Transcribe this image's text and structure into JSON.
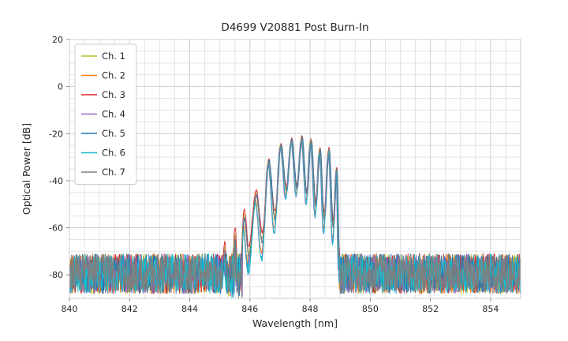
{
  "chart_data": {
    "type": "line",
    "title": "D4699 V20881 Post Burn-In",
    "xlabel": "Wavelength [nm]",
    "ylabel": "Optical Power [dB]",
    "xlim": [
      840,
      855
    ],
    "ylim": [
      -90,
      20
    ],
    "xticks": [
      840,
      842,
      844,
      846,
      848,
      850,
      852,
      854
    ],
    "yticks": [
      20,
      0,
      -20,
      -40,
      -60,
      -80
    ],
    "x_minor_step": 0.5,
    "y_minor_step": 5,
    "grid": true,
    "legend_position": "upper left",
    "background_color": "#ffffff",
    "grid_minor_color": "#e4e4e4",
    "grid_major_color": "#cfcfcf",
    "axes_border_color": "#cccccc",
    "series": [
      {
        "name": "Ch. 1",
        "color": "#bcbd22"
      },
      {
        "name": "Ch. 2",
        "color": "#ff7f0e"
      },
      {
        "name": "Ch. 3",
        "color": "#d62728"
      },
      {
        "name": "Ch. 4",
        "color": "#9467bd"
      },
      {
        "name": "Ch. 5",
        "color": "#1f77b4"
      },
      {
        "name": "Ch. 6",
        "color": "#17becf"
      },
      {
        "name": "Ch. 7",
        "color": "#7f7f7f"
      }
    ],
    "noise_floor_db": {
      "max": -71,
      "min": -88
    },
    "signal_envelope_nm_db": [
      [
        845.0,
        -100
      ],
      [
        845.15,
        -72
      ],
      [
        845.3,
        -100
      ],
      [
        845.5,
        -66
      ],
      [
        845.62,
        -100
      ],
      [
        845.8,
        -57
      ],
      [
        845.95,
        -74
      ],
      [
        846.2,
        -47
      ],
      [
        846.4,
        -68
      ],
      [
        846.62,
        -32
      ],
      [
        846.82,
        -58
      ],
      [
        847.02,
        -25
      ],
      [
        847.2,
        -45
      ],
      [
        847.38,
        -23
      ],
      [
        847.55,
        -44
      ],
      [
        847.72,
        -22
      ],
      [
        847.88,
        -47
      ],
      [
        848.02,
        -23
      ],
      [
        848.18,
        -52
      ],
      [
        848.32,
        -27
      ],
      [
        848.46,
        -58
      ],
      [
        848.62,
        -27
      ],
      [
        848.76,
        -62
      ],
      [
        848.88,
        -35
      ],
      [
        848.96,
        -75
      ],
      [
        849.02,
        -100
      ]
    ]
  }
}
